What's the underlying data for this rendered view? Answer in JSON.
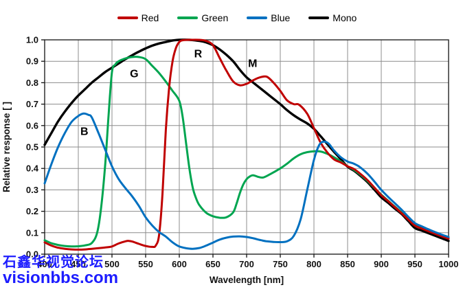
{
  "watermark": {
    "line1": "石鑫华视觉论坛",
    "line2": "visionbbs.com",
    "color": "#1c1cff"
  },
  "legend": {
    "items": [
      {
        "label": "Red",
        "color": "#c00000"
      },
      {
        "label": "Green",
        "color": "#00a550"
      },
      {
        "label": "Blue",
        "color": "#0070c0"
      },
      {
        "label": "Mono",
        "color": "#000000"
      }
    ]
  },
  "chart_data": {
    "type": "line",
    "title": "",
    "xlabel": "Wavelength [nm]",
    "ylabel": "Relative response [ ]",
    "xlim": [
      400,
      1000
    ],
    "ylim": [
      0.0,
      1.0
    ],
    "x_ticks": [
      400,
      450,
      500,
      550,
      600,
      650,
      700,
      750,
      800,
      850,
      900,
      950,
      1000
    ],
    "y_ticks": [
      0.0,
      0.1,
      0.2,
      0.3,
      0.4,
      0.5,
      0.6,
      0.7,
      0.8,
      0.9,
      1.0
    ],
    "grid": true,
    "grid_color": "#8c8c8c",
    "border_color": "#222222",
    "legend_position": "top-center",
    "series": [
      {
        "name": "Mono",
        "color": "#000000",
        "width": 3.4,
        "annotation": {
          "text": "M",
          "x": 709,
          "y": 0.891
        },
        "points": [
          [
            400,
            0.51
          ],
          [
            410,
            0.565
          ],
          [
            420,
            0.62
          ],
          [
            430,
            0.665
          ],
          [
            440,
            0.705
          ],
          [
            450,
            0.74
          ],
          [
            460,
            0.77
          ],
          [
            470,
            0.8
          ],
          [
            480,
            0.825
          ],
          [
            490,
            0.85
          ],
          [
            500,
            0.87
          ],
          [
            510,
            0.89
          ],
          [
            520,
            0.91
          ],
          [
            530,
            0.928
          ],
          [
            540,
            0.945
          ],
          [
            550,
            0.96
          ],
          [
            560,
            0.973
          ],
          [
            570,
            0.983
          ],
          [
            580,
            0.99
          ],
          [
            590,
            0.997
          ],
          [
            600,
            1.0
          ],
          [
            615,
            1.0
          ],
          [
            630,
            0.995
          ],
          [
            640,
            0.988
          ],
          [
            650,
            0.975
          ],
          [
            660,
            0.955
          ],
          [
            670,
            0.93
          ],
          [
            680,
            0.9
          ],
          [
            690,
            0.86
          ],
          [
            700,
            0.825
          ],
          [
            710,
            0.8
          ],
          [
            720,
            0.775
          ],
          [
            730,
            0.75
          ],
          [
            740,
            0.725
          ],
          [
            750,
            0.7
          ],
          [
            760,
            0.672
          ],
          [
            770,
            0.648
          ],
          [
            780,
            0.628
          ],
          [
            790,
            0.61
          ],
          [
            800,
            0.585
          ],
          [
            810,
            0.55
          ],
          [
            820,
            0.513
          ],
          [
            830,
            0.477
          ],
          [
            840,
            0.443
          ],
          [
            850,
            0.408
          ],
          [
            860,
            0.388
          ],
          [
            870,
            0.363
          ],
          [
            880,
            0.335
          ],
          [
            890,
            0.3
          ],
          [
            900,
            0.265
          ],
          [
            910,
            0.24
          ],
          [
            920,
            0.213
          ],
          [
            930,
            0.188
          ],
          [
            940,
            0.155
          ],
          [
            950,
            0.122
          ],
          [
            960,
            0.11
          ],
          [
            970,
            0.098
          ],
          [
            980,
            0.086
          ],
          [
            990,
            0.074
          ],
          [
            1000,
            0.062
          ]
        ]
      },
      {
        "name": "Green",
        "color": "#00a550",
        "width": 3.0,
        "annotation": {
          "text": "G",
          "x": 533,
          "y": 0.843
        },
        "points": [
          [
            400,
            0.065
          ],
          [
            410,
            0.051
          ],
          [
            420,
            0.043
          ],
          [
            430,
            0.038
          ],
          [
            440,
            0.036
          ],
          [
            450,
            0.037
          ],
          [
            460,
            0.041
          ],
          [
            470,
            0.052
          ],
          [
            478,
            0.1
          ],
          [
            484,
            0.22
          ],
          [
            490,
            0.42
          ],
          [
            495,
            0.65
          ],
          [
            500,
            0.85
          ],
          [
            505,
            0.885
          ],
          [
            510,
            0.9
          ],
          [
            520,
            0.913
          ],
          [
            530,
            0.92
          ],
          [
            540,
            0.92
          ],
          [
            550,
            0.91
          ],
          [
            560,
            0.878
          ],
          [
            570,
            0.845
          ],
          [
            580,
            0.805
          ],
          [
            590,
            0.762
          ],
          [
            600,
            0.715
          ],
          [
            605,
            0.64
          ],
          [
            610,
            0.52
          ],
          [
            615,
            0.4
          ],
          [
            620,
            0.31
          ],
          [
            625,
            0.26
          ],
          [
            630,
            0.228
          ],
          [
            640,
            0.193
          ],
          [
            650,
            0.177
          ],
          [
            660,
            0.17
          ],
          [
            670,
            0.172
          ],
          [
            680,
            0.195
          ],
          [
            685,
            0.235
          ],
          [
            690,
            0.285
          ],
          [
            695,
            0.325
          ],
          [
            700,
            0.35
          ],
          [
            705,
            0.363
          ],
          [
            710,
            0.368
          ],
          [
            718,
            0.36
          ],
          [
            725,
            0.358
          ],
          [
            735,
            0.373
          ],
          [
            750,
            0.4
          ],
          [
            760,
            0.422
          ],
          [
            770,
            0.447
          ],
          [
            780,
            0.466
          ],
          [
            790,
            0.476
          ],
          [
            800,
            0.48
          ],
          [
            810,
            0.479
          ],
          [
            820,
            0.468
          ],
          [
            830,
            0.452
          ],
          [
            840,
            0.432
          ],
          [
            850,
            0.41
          ],
          [
            860,
            0.392
          ],
          [
            870,
            0.368
          ],
          [
            880,
            0.34
          ],
          [
            890,
            0.308
          ],
          [
            900,
            0.278
          ],
          [
            910,
            0.25
          ],
          [
            920,
            0.222
          ],
          [
            930,
            0.195
          ],
          [
            940,
            0.165
          ],
          [
            950,
            0.138
          ],
          [
            960,
            0.124
          ],
          [
            970,
            0.111
          ],
          [
            980,
            0.098
          ],
          [
            990,
            0.086
          ],
          [
            1000,
            0.075
          ]
        ]
      },
      {
        "name": "Red",
        "color": "#c00000",
        "width": 3.0,
        "annotation": {
          "text": "R",
          "x": 628,
          "y": 0.936
        },
        "points": [
          [
            400,
            0.055
          ],
          [
            410,
            0.04
          ],
          [
            420,
            0.03
          ],
          [
            430,
            0.025
          ],
          [
            440,
            0.022
          ],
          [
            450,
            0.021
          ],
          [
            460,
            0.022
          ],
          [
            470,
            0.025
          ],
          [
            480,
            0.028
          ],
          [
            490,
            0.031
          ],
          [
            500,
            0.036
          ],
          [
            510,
            0.05
          ],
          [
            520,
            0.06
          ],
          [
            525,
            0.062
          ],
          [
            530,
            0.059
          ],
          [
            540,
            0.048
          ],
          [
            550,
            0.038
          ],
          [
            560,
            0.034
          ],
          [
            565,
            0.04
          ],
          [
            570,
            0.09
          ],
          [
            575,
            0.28
          ],
          [
            580,
            0.58
          ],
          [
            585,
            0.78
          ],
          [
            590,
            0.9
          ],
          [
            595,
            0.962
          ],
          [
            600,
            0.99
          ],
          [
            605,
            0.998
          ],
          [
            615,
            1.0
          ],
          [
            630,
            1.0
          ],
          [
            640,
            0.995
          ],
          [
            650,
            0.975
          ],
          [
            660,
            0.915
          ],
          [
            670,
            0.856
          ],
          [
            680,
            0.806
          ],
          [
            690,
            0.788
          ],
          [
            700,
            0.795
          ],
          [
            710,
            0.812
          ],
          [
            720,
            0.825
          ],
          [
            730,
            0.828
          ],
          [
            740,
            0.8
          ],
          [
            750,
            0.762
          ],
          [
            760,
            0.718
          ],
          [
            770,
            0.7
          ],
          [
            778,
            0.697
          ],
          [
            790,
            0.655
          ],
          [
            800,
            0.588
          ],
          [
            810,
            0.52
          ],
          [
            820,
            0.474
          ],
          [
            830,
            0.442
          ],
          [
            840,
            0.428
          ],
          [
            850,
            0.41
          ],
          [
            860,
            0.396
          ],
          [
            870,
            0.372
          ],
          [
            880,
            0.344
          ],
          [
            890,
            0.31
          ],
          [
            900,
            0.275
          ],
          [
            910,
            0.248
          ],
          [
            920,
            0.22
          ],
          [
            930,
            0.192
          ],
          [
            940,
            0.162
          ],
          [
            950,
            0.133
          ],
          [
            960,
            0.12
          ],
          [
            970,
            0.107
          ],
          [
            980,
            0.095
          ],
          [
            990,
            0.083
          ],
          [
            1000,
            0.072
          ]
        ]
      },
      {
        "name": "Blue",
        "color": "#0070c0",
        "width": 3.0,
        "annotation": {
          "text": "B",
          "x": 459,
          "y": 0.574
        },
        "points": [
          [
            400,
            0.33
          ],
          [
            410,
            0.42
          ],
          [
            420,
            0.5
          ],
          [
            430,
            0.565
          ],
          [
            440,
            0.617
          ],
          [
            450,
            0.645
          ],
          [
            458,
            0.656
          ],
          [
            465,
            0.65
          ],
          [
            470,
            0.638
          ],
          [
            480,
            0.565
          ],
          [
            490,
            0.487
          ],
          [
            500,
            0.41
          ],
          [
            510,
            0.35
          ],
          [
            520,
            0.308
          ],
          [
            530,
            0.27
          ],
          [
            540,
            0.225
          ],
          [
            550,
            0.172
          ],
          [
            560,
            0.133
          ],
          [
            570,
            0.103
          ],
          [
            580,
            0.082
          ],
          [
            590,
            0.055
          ],
          [
            600,
            0.036
          ],
          [
            610,
            0.028
          ],
          [
            620,
            0.025
          ],
          [
            630,
            0.029
          ],
          [
            640,
            0.04
          ],
          [
            650,
            0.054
          ],
          [
            660,
            0.068
          ],
          [
            670,
            0.077
          ],
          [
            680,
            0.082
          ],
          [
            690,
            0.083
          ],
          [
            700,
            0.08
          ],
          [
            710,
            0.074
          ],
          [
            720,
            0.066
          ],
          [
            730,
            0.06
          ],
          [
            740,
            0.057
          ],
          [
            750,
            0.056
          ],
          [
            760,
            0.06
          ],
          [
            770,
            0.085
          ],
          [
            780,
            0.16
          ],
          [
            790,
            0.3
          ],
          [
            800,
            0.44
          ],
          [
            808,
            0.51
          ],
          [
            815,
            0.525
          ],
          [
            822,
            0.515
          ],
          [
            830,
            0.483
          ],
          [
            840,
            0.452
          ],
          [
            850,
            0.432
          ],
          [
            858,
            0.424
          ],
          [
            865,
            0.413
          ],
          [
            870,
            0.402
          ],
          [
            880,
            0.374
          ],
          [
            890,
            0.338
          ],
          [
            900,
            0.3
          ],
          [
            910,
            0.268
          ],
          [
            920,
            0.238
          ],
          [
            930,
            0.208
          ],
          [
            940,
            0.175
          ],
          [
            950,
            0.145
          ],
          [
            960,
            0.13
          ],
          [
            970,
            0.116
          ],
          [
            980,
            0.103
          ],
          [
            990,
            0.091
          ],
          [
            1000,
            0.08
          ]
        ]
      }
    ]
  }
}
